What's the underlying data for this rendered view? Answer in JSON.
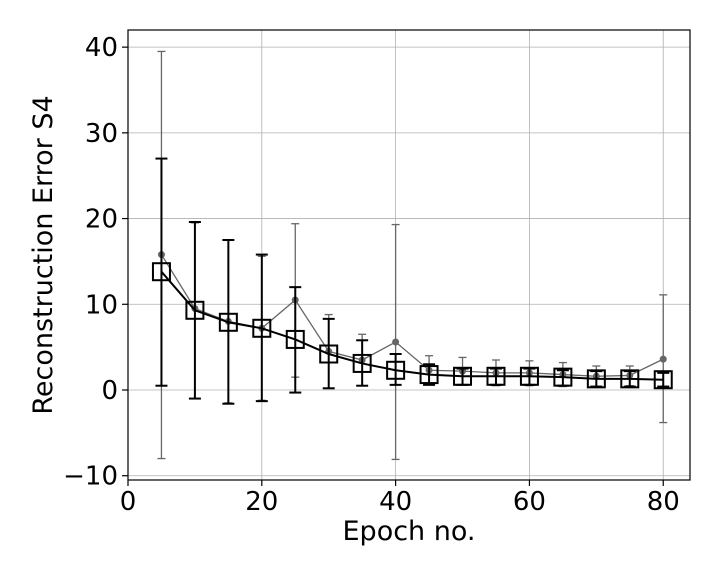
{
  "chart_data": {
    "type": "line",
    "title": "",
    "xlabel": "Epoch no.",
    "ylabel": "Reconstruction Error S4",
    "xlim": [
      0,
      84
    ],
    "ylim": [
      -10.5,
      42
    ],
    "xticks": [
      0,
      20,
      40,
      60,
      80
    ],
    "yticks": [
      -10,
      0,
      10,
      20,
      30,
      40
    ],
    "ytick_labels": [
      "−10",
      "0",
      "10",
      "20",
      "30",
      "40"
    ],
    "grid": true,
    "legend": "none",
    "series": [
      {
        "color": "#666666",
        "marker": "circle",
        "x": [
          5,
          10,
          15,
          20,
          25,
          30,
          35,
          40,
          45,
          50,
          55,
          60,
          65,
          70,
          75,
          80
        ],
        "y": [
          15.8,
          9.5,
          8.0,
          7.2,
          10.5,
          4.5,
          3.5,
          5.6,
          2.3,
          2.2,
          2.0,
          2.0,
          1.8,
          1.6,
          1.7,
          3.6
        ],
        "err_low": [
          -8.0,
          -1.0,
          -1.5,
          -1.2,
          1.5,
          0.2,
          0.5,
          -8.1,
          0.6,
          0.6,
          0.5,
          0.5,
          0.4,
          0.4,
          0.5,
          -3.8
        ],
        "err_high": [
          39.5,
          19.5,
          17.5,
          15.6,
          19.4,
          8.8,
          6.5,
          19.3,
          4.0,
          3.8,
          3.5,
          3.4,
          3.2,
          2.8,
          2.8,
          11.1
        ]
      },
      {
        "color": "#000000",
        "marker": "square",
        "x": [
          5,
          10,
          15,
          20,
          25,
          30,
          35,
          40,
          45,
          50,
          55,
          60,
          65,
          70,
          75,
          80
        ],
        "y": [
          13.8,
          9.3,
          7.9,
          7.2,
          5.9,
          4.2,
          3.1,
          2.3,
          1.8,
          1.6,
          1.6,
          1.6,
          1.5,
          1.3,
          1.3,
          1.2
        ],
        "err_low": [
          0.5,
          -1.0,
          -1.6,
          -1.3,
          -0.3,
          0.2,
          0.5,
          0.6,
          0.6,
          0.6,
          0.6,
          0.6,
          0.5,
          0.4,
          0.4,
          0.4
        ],
        "err_high": [
          27.0,
          19.6,
          17.5,
          15.8,
          12.0,
          8.3,
          5.8,
          4.2,
          3.0,
          2.5,
          2.5,
          2.5,
          2.3,
          2.2,
          2.2,
          2.0
        ]
      }
    ]
  }
}
